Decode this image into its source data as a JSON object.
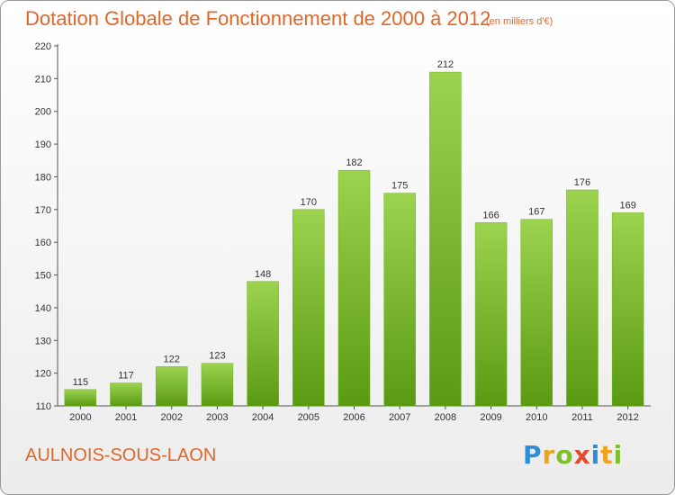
{
  "header": {
    "title": "Dotation Globale de Fonctionnement de 2000 à 2012",
    "unit": "(en milliers d'€)"
  },
  "footer": {
    "commune": "AULNOIS-SOUS-LAON",
    "brand": "Proxiti"
  },
  "colors": {
    "bar_top": "#9cd34f",
    "bar_bottom": "#5a9a12",
    "accent": "#e0672a"
  },
  "chart_data": {
    "type": "bar",
    "title": "Dotation Globale de Fonctionnement de 2000 à 2012",
    "subtitle": "(en milliers d'€)",
    "categories": [
      "2000",
      "2001",
      "2002",
      "2003",
      "2004",
      "2005",
      "2006",
      "2007",
      "2008",
      "2009",
      "2010",
      "2011",
      "2012"
    ],
    "values": [
      115,
      117,
      122,
      123,
      148,
      170,
      182,
      175,
      212,
      166,
      167,
      176,
      169
    ],
    "ylim": [
      110,
      220
    ],
    "yticks": [
      110,
      120,
      130,
      140,
      150,
      160,
      170,
      180,
      190,
      200,
      210,
      220
    ],
    "grid": false,
    "legend": "none"
  }
}
